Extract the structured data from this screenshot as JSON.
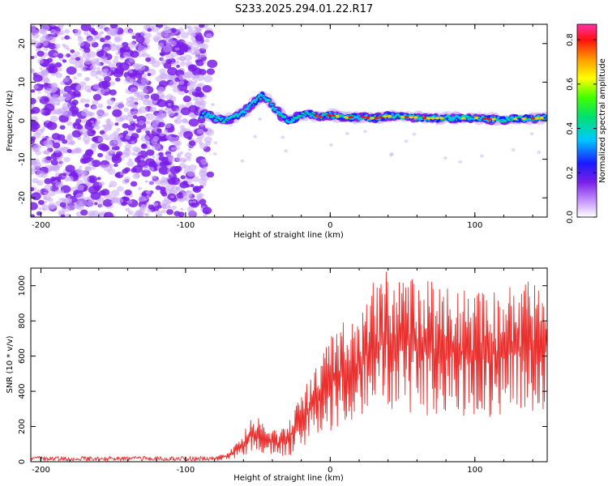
{
  "title": "S233.2025.294.01.22.R17",
  "colors": {
    "snr_line": "#e8312f",
    "noise_dot": "#c9a8f5",
    "noise_dark": "#7a1fe8",
    "axis": "#000000"
  },
  "chart_data": [
    {
      "type": "heatmap",
      "name": "spectrogram",
      "xlabel": "Height of straight line (km)",
      "ylabel": "Frequency (Hz)",
      "xlim": [
        -207,
        150
      ],
      "ylim": [
        -25,
        25
      ],
      "xticks": [
        -200,
        -100,
        0,
        100
      ],
      "yticks": [
        -20,
        -10,
        0,
        10,
        20
      ],
      "xtick_labels": [
        "-200",
        "-100",
        "0",
        "100"
      ],
      "ytick_labels": [
        "-20",
        "-10",
        "0",
        "10",
        "20"
      ],
      "noise_region_x": [
        -207,
        -80
      ],
      "signal_ridge": [
        {
          "x": -88,
          "y": 2
        },
        {
          "x": -82,
          "y": 1
        },
        {
          "x": -75,
          "y": 0
        },
        {
          "x": -68,
          "y": 0.5
        },
        {
          "x": -60,
          "y": 2
        },
        {
          "x": -52,
          "y": 5
        },
        {
          "x": -47,
          "y": 6.5
        },
        {
          "x": -42,
          "y": 5
        },
        {
          "x": -38,
          "y": 3
        },
        {
          "x": -33,
          "y": 1
        },
        {
          "x": -28,
          "y": 0
        },
        {
          "x": -22,
          "y": 1
        },
        {
          "x": -15,
          "y": 2
        },
        {
          "x": -8,
          "y": 1
        },
        {
          "x": 0,
          "y": 1.5
        },
        {
          "x": 10,
          "y": 0.8
        },
        {
          "x": 20,
          "y": 1
        },
        {
          "x": 30,
          "y": 0.6
        },
        {
          "x": 40,
          "y": 1.2
        },
        {
          "x": 50,
          "y": 1
        },
        {
          "x": 60,
          "y": 0.8
        },
        {
          "x": 70,
          "y": 0.6
        },
        {
          "x": 80,
          "y": 0.7
        },
        {
          "x": 90,
          "y": 0.6
        },
        {
          "x": 100,
          "y": 0.8
        },
        {
          "x": 110,
          "y": 0.4
        },
        {
          "x": 120,
          "y": 0.3
        },
        {
          "x": 130,
          "y": 0.5
        },
        {
          "x": 140,
          "y": 0.6
        },
        {
          "x": 150,
          "y": 0.8
        }
      ],
      "colorbar": {
        "label": "Normalized spectral amplitude",
        "range": [
          0.0,
          0.87
        ],
        "ticks": [
          0.0,
          0.2,
          0.4,
          0.6,
          0.8
        ],
        "tick_labels": [
          "0.0",
          "0.2",
          "0.4",
          "0.6",
          "0.8"
        ]
      }
    },
    {
      "type": "line",
      "name": "snr",
      "xlabel": "Height of straight line (km)",
      "ylabel": "SNR (10 * v/v)",
      "xlim": [
        -207,
        150
      ],
      "ylim": [
        0,
        1100
      ],
      "xticks": [
        -200,
        -100,
        0,
        100
      ],
      "yticks": [
        0,
        200,
        400,
        600,
        800,
        1000
      ],
      "xtick_labels": [
        "-200",
        "-100",
        "0",
        "100"
      ],
      "ytick_labels": [
        "0",
        "200",
        "400",
        "600",
        "800",
        "1000"
      ],
      "envelope": [
        {
          "x": -207,
          "low": 5,
          "high": 30
        },
        {
          "x": -80,
          "low": 5,
          "high": 30
        },
        {
          "x": -70,
          "low": 10,
          "high": 60
        },
        {
          "x": -60,
          "low": 30,
          "high": 150
        },
        {
          "x": -55,
          "low": 40,
          "high": 280
        },
        {
          "x": -45,
          "low": 40,
          "high": 220
        },
        {
          "x": -35,
          "low": 20,
          "high": 180
        },
        {
          "x": -25,
          "low": 40,
          "high": 300
        },
        {
          "x": -15,
          "low": 80,
          "high": 500
        },
        {
          "x": -5,
          "low": 150,
          "high": 650
        },
        {
          "x": 5,
          "low": 200,
          "high": 800
        },
        {
          "x": 15,
          "low": 220,
          "high": 850
        },
        {
          "x": 25,
          "low": 250,
          "high": 980
        },
        {
          "x": 35,
          "low": 250,
          "high": 1080
        },
        {
          "x": 45,
          "low": 260,
          "high": 1080
        },
        {
          "x": 60,
          "low": 250,
          "high": 1060
        },
        {
          "x": 80,
          "low": 260,
          "high": 1000
        },
        {
          "x": 100,
          "low": 250,
          "high": 960
        },
        {
          "x": 120,
          "low": 250,
          "high": 1000
        },
        {
          "x": 140,
          "low": 280,
          "high": 1060
        },
        {
          "x": 150,
          "low": 300,
          "high": 1050
        }
      ]
    }
  ]
}
